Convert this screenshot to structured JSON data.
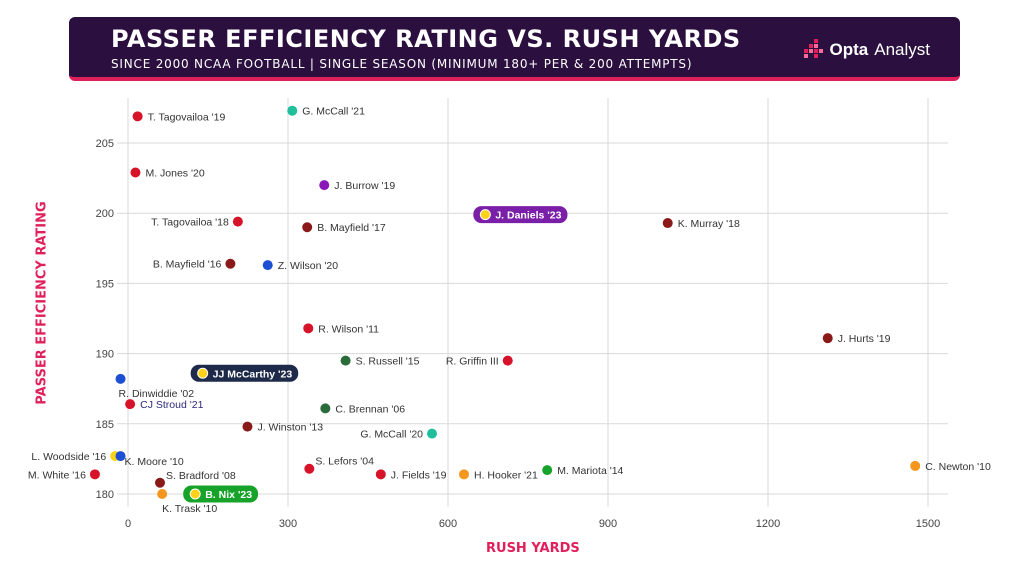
{
  "header": {
    "title": "PASSER EFFICIENCY RATING VS. RUSH YARDS",
    "subtitle": "SINCE 2000 NCAA FOOTBALL | SINGLE SEASON (MINIMUM 180+ PER & 200 ATTEMPTS)",
    "brand_bold": "Opta",
    "brand_light": "Analyst"
  },
  "colors": {
    "header_bg": "#2a0f3f",
    "accent": "#e0205a",
    "grid": "#d9d9d9",
    "label": "#333333"
  },
  "chart_data": {
    "type": "scatter",
    "title": "PASSER EFFICIENCY RATING VS. RUSH YARDS",
    "subtitle": "SINCE 2000 NCAA FOOTBALL | SINGLE SEASON (MINIMUM 180+ PER & 200 ATTEMPTS)",
    "xlabel": "RUSH YARDS",
    "ylabel": "PASSER EFFICIENCY RATING",
    "xlim": [
      -60,
      1570
    ],
    "ylim": [
      179,
      208
    ],
    "xticks": [
      0,
      300,
      600,
      900,
      1200,
      1500
    ],
    "yticks": [
      180,
      185,
      190,
      195,
      200,
      205
    ],
    "grid": true,
    "points": [
      {
        "label": "T. Tagovailoa '19",
        "x": 18,
        "y": 206.9,
        "color": "#d7132a",
        "side": "right"
      },
      {
        "label": "G. McCall '21",
        "x": 308,
        "y": 207.3,
        "color": "#1fbf9c",
        "side": "right"
      },
      {
        "label": "M. Jones '20",
        "x": 14,
        "y": 202.9,
        "color": "#d7132a",
        "side": "right"
      },
      {
        "label": "J. Burrow '19",
        "x": 368,
        "y": 202.0,
        "color": "#8a18b8",
        "side": "right"
      },
      {
        "label": "T. Tagovailoa '18",
        "x": 206,
        "y": 199.4,
        "color": "#d7132a",
        "side": "left"
      },
      {
        "label": "B. Mayfield '17",
        "x": 336,
        "y": 199.0,
        "color": "#8a1a1a",
        "side": "right"
      },
      {
        "label": "J. Daniels '23",
        "x": 670,
        "y": 199.9,
        "color": "#ffd21a",
        "side": "right",
        "highlight": true,
        "highlight_bg": "#7a1fa8"
      },
      {
        "label": "K. Murray '18",
        "x": 1012,
        "y": 199.3,
        "color": "#8a1a1a",
        "side": "right"
      },
      {
        "label": "B. Mayfield '16",
        "x": 192,
        "y": 196.4,
        "color": "#8a1a1a",
        "side": "left"
      },
      {
        "label": "Z. Wilson '20",
        "x": 262,
        "y": 196.3,
        "color": "#1c4fd4",
        "side": "right"
      },
      {
        "label": "R. Wilson '11",
        "x": 338,
        "y": 191.8,
        "color": "#d7132a",
        "side": "right"
      },
      {
        "label": "J. Hurts '19",
        "x": 1312,
        "y": 191.1,
        "color": "#8a1a1a",
        "side": "right"
      },
      {
        "label": "S. Russell '15",
        "x": 408,
        "y": 189.5,
        "color": "#2a6b3a",
        "side": "right"
      },
      {
        "label": "R. Griffin III",
        "x": 712,
        "y": 189.5,
        "color": "#d7132a",
        "side": "left"
      },
      {
        "label": "JJ McCarthy '23",
        "x": 140,
        "y": 188.6,
        "color": "#ffd21a",
        "side": "right",
        "highlight": true,
        "highlight_bg": "#1e2a4a"
      },
      {
        "label": "R. Dinwiddie '02",
        "x": -14,
        "y": 188.2,
        "color": "#1c4fd4",
        "side": "below"
      },
      {
        "label": "CJ Stroud '21",
        "x": 4,
        "y": 186.4,
        "color": "#d7132a",
        "side": "right"
      },
      {
        "label": "C. Brennan '06",
        "x": 370,
        "y": 186.1,
        "color": "#2a6b3a",
        "side": "right"
      },
      {
        "label": "J. Winston '13",
        "x": 224,
        "y": 184.8,
        "color": "#8a1a1a",
        "side": "right"
      },
      {
        "label": "G. McCall '20",
        "x": 570,
        "y": 184.3,
        "color": "#1fbf9c",
        "side": "left"
      },
      {
        "label": "L. Woodside '16",
        "x": -24,
        "y": 182.7,
        "color": "#ffd21a",
        "side": "left"
      },
      {
        "label": "K. Moore '10",
        "x": -14,
        "y": 182.7,
        "color": "#1c4fd4",
        "side": "below-right"
      },
      {
        "label": "S. Lefors '04",
        "x": 340,
        "y": 181.8,
        "color": "#d7132a",
        "side": "above-right"
      },
      {
        "label": "J. Fields '19",
        "x": 474,
        "y": 181.4,
        "color": "#d7132a",
        "side": "right"
      },
      {
        "label": "H. Hooker '21",
        "x": 630,
        "y": 181.4,
        "color": "#f5961e",
        "side": "right"
      },
      {
        "label": "M. Mariota '14",
        "x": 786,
        "y": 181.7,
        "color": "#17a32a",
        "side": "right"
      },
      {
        "label": "C. Newton '10",
        "x": 1476,
        "y": 182.0,
        "color": "#f5961e",
        "side": "right"
      },
      {
        "label": "M. White '16",
        "x": -62,
        "y": 181.4,
        "color": "#d7132a",
        "side": "left"
      },
      {
        "label": "S. Bradford '08",
        "x": 60,
        "y": 180.8,
        "color": "#8a1a1a",
        "side": "above-right"
      },
      {
        "label": "K. Trask '10",
        "x": 64,
        "y": 180.0,
        "color": "#f5961e",
        "side": "below"
      },
      {
        "label": "B. Nix '23",
        "x": 126,
        "y": 180.0,
        "color": "#ffd21a",
        "side": "right",
        "highlight": true,
        "highlight_bg": "#17a32a"
      }
    ]
  }
}
